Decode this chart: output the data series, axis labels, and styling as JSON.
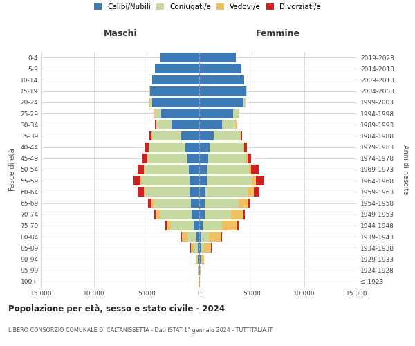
{
  "age_groups": [
    "100+",
    "95-99",
    "90-94",
    "85-89",
    "80-84",
    "75-79",
    "70-74",
    "65-69",
    "60-64",
    "55-59",
    "50-54",
    "45-49",
    "40-44",
    "35-39",
    "30-34",
    "25-29",
    "20-24",
    "15-19",
    "10-14",
    "5-9",
    "0-4"
  ],
  "birth_years": [
    "≤ 1923",
    "1924-1928",
    "1929-1933",
    "1934-1938",
    "1939-1943",
    "1944-1948",
    "1949-1953",
    "1954-1958",
    "1959-1963",
    "1964-1968",
    "1969-1973",
    "1974-1978",
    "1979-1983",
    "1984-1988",
    "1989-1993",
    "1994-1998",
    "1999-2003",
    "2004-2008",
    "2009-2013",
    "2014-2018",
    "2019-2023"
  ],
  "colors": {
    "celibi": "#3d7ab5",
    "coniugati": "#c5d9a0",
    "vedovi": "#f0c060",
    "divorziati": "#cc2222"
  },
  "maschi": {
    "celibi": [
      20,
      50,
      100,
      150,
      250,
      500,
      700,
      800,
      900,
      950,
      1000,
      1100,
      1300,
      1700,
      2600,
      3600,
      4500,
      4700,
      4500,
      4200,
      3700
    ],
    "coniugati": [
      10,
      30,
      80,
      350,
      900,
      2200,
      3000,
      3500,
      4200,
      4500,
      4200,
      3800,
      3500,
      2800,
      1500,
      700,
      200,
      20,
      0,
      0,
      0
    ],
    "vedovi": [
      10,
      30,
      130,
      300,
      500,
      400,
      350,
      250,
      180,
      120,
      80,
      50,
      30,
      20,
      10,
      5,
      5,
      0,
      0,
      0,
      0
    ],
    "divorziati": [
      2,
      5,
      10,
      30,
      50,
      100,
      200,
      350,
      550,
      700,
      600,
      450,
      350,
      220,
      100,
      50,
      10,
      5,
      0,
      0,
      0
    ]
  },
  "femmine": {
    "celibi": [
      20,
      50,
      100,
      150,
      200,
      350,
      500,
      550,
      600,
      700,
      750,
      850,
      1000,
      1400,
      2200,
      3200,
      4200,
      4500,
      4300,
      4000,
      3500
    ],
    "coniugati": [
      5,
      20,
      80,
      300,
      700,
      1800,
      2500,
      3200,
      4000,
      4300,
      4000,
      3600,
      3200,
      2500,
      1300,
      600,
      200,
      20,
      0,
      0,
      0
    ],
    "vedovi": [
      30,
      80,
      300,
      700,
      1200,
      1500,
      1200,
      900,
      600,
      400,
      200,
      150,
      80,
      50,
      20,
      10,
      5,
      0,
      0,
      0,
      0
    ],
    "divorziati": [
      2,
      5,
      10,
      25,
      40,
      70,
      120,
      200,
      500,
      800,
      700,
      350,
      250,
      150,
      80,
      30,
      10,
      5,
      0,
      0,
      0
    ]
  },
  "title": "Popolazione per età, sesso e stato civile - 2024",
  "subtitle": "LIBERO CONSORZIO COMUNALE DI CALTANISSETTA - Dati ISTAT 1° gennaio 2024 - TUTTITALIA.IT",
  "xlabel_left": "Maschi",
  "xlabel_right": "Femmine",
  "ylabel_left": "Fasce di età",
  "ylabel_right": "Anni di nascita",
  "xlim": 15000,
  "xticks": [
    -15000,
    -10000,
    -5000,
    0,
    5000,
    10000,
    15000
  ],
  "xticklabels": [
    "15.000",
    "10.000",
    "5.000",
    "0",
    "5.000",
    "10.000",
    "15.000"
  ],
  "bg_color": "#f5f5f5"
}
